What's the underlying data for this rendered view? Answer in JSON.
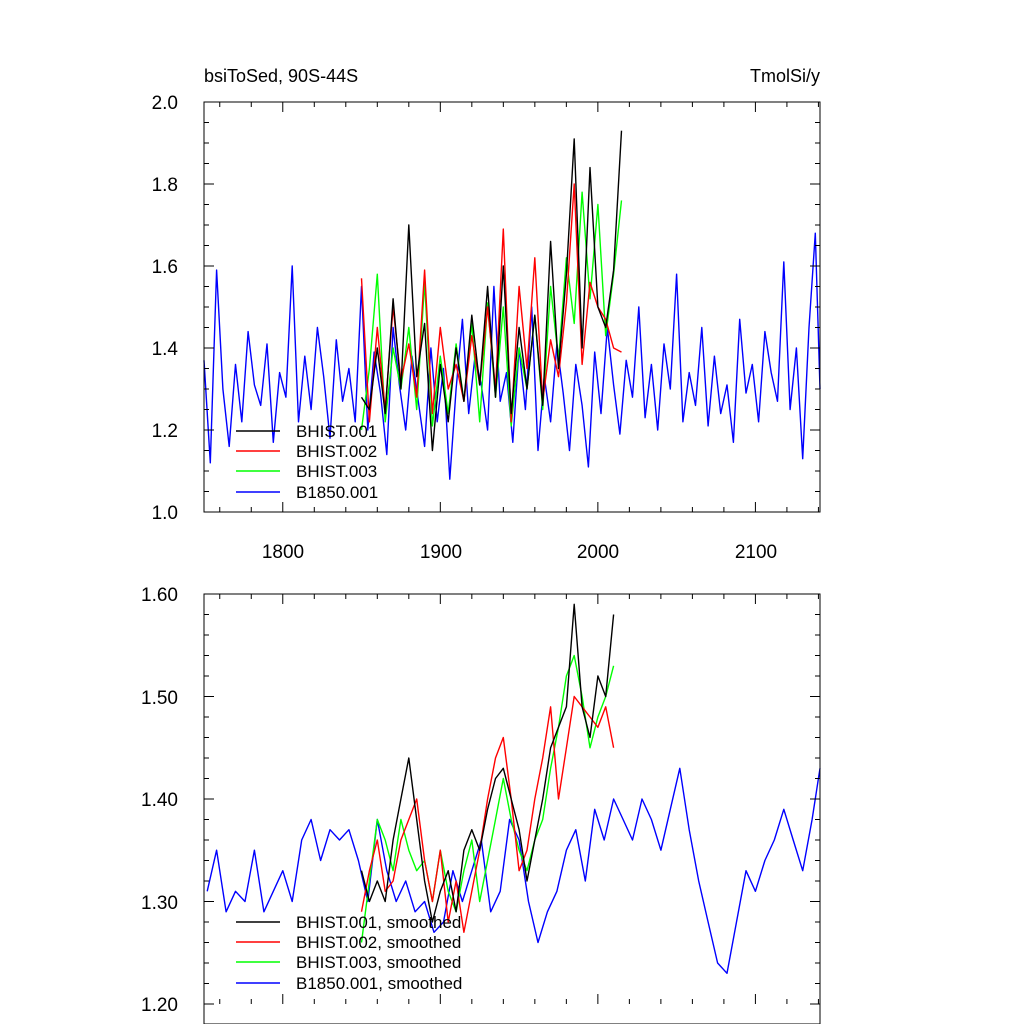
{
  "chart_data": [
    {
      "type": "line",
      "title_left": "bsiToSed, 90S-44S",
      "title_right": "TmolSi/y",
      "xlim": [
        1750,
        2141
      ],
      "ylim": [
        1.0,
        2.0
      ],
      "x_ticks": [
        1800,
        1900,
        2000,
        2100
      ],
      "x_tick_labels": [
        "1800",
        "1900",
        "2000",
        "2100"
      ],
      "y_ticks": [
        1.0,
        1.2,
        1.4,
        1.6,
        1.8,
        2.0
      ],
      "y_tick_labels": [
        "1.0",
        "1.2",
        "1.4",
        "1.6",
        "1.8",
        "2.0"
      ],
      "legend": [
        "BHIST.001",
        "BHIST.002",
        "BHIST.003",
        "B1850.001"
      ],
      "series": [
        {
          "name": "BHIST.001",
          "color": "#000000",
          "x": [
            1850,
            1855,
            1860,
            1865,
            1870,
            1875,
            1880,
            1885,
            1890,
            1895,
            1900,
            1905,
            1910,
            1915,
            1920,
            1925,
            1930,
            1935,
            1940,
            1945,
            1950,
            1955,
            1960,
            1965,
            1970,
            1975,
            1980,
            1985,
            1990,
            1995,
            2000,
            2005,
            2010,
            2015
          ],
          "values": [
            1.28,
            1.25,
            1.4,
            1.24,
            1.52,
            1.3,
            1.7,
            1.33,
            1.46,
            1.15,
            1.36,
            1.22,
            1.4,
            1.27,
            1.48,
            1.31,
            1.55,
            1.28,
            1.6,
            1.24,
            1.45,
            1.3,
            1.48,
            1.26,
            1.66,
            1.35,
            1.58,
            1.91,
            1.4,
            1.84,
            1.5,
            1.45,
            1.59,
            1.93
          ]
        },
        {
          "name": "BHIST.002",
          "color": "#ff0000",
          "x": [
            1850,
            1855,
            1860,
            1865,
            1870,
            1875,
            1880,
            1885,
            1890,
            1895,
            1900,
            1905,
            1910,
            1915,
            1920,
            1925,
            1930,
            1935,
            1940,
            1945,
            1950,
            1955,
            1960,
            1965,
            1970,
            1975,
            1980,
            1985,
            1990,
            1995,
            2000,
            2005,
            2010,
            2015
          ],
          "values": [
            1.57,
            1.22,
            1.45,
            1.25,
            1.5,
            1.32,
            1.41,
            1.28,
            1.59,
            1.24,
            1.45,
            1.3,
            1.36,
            1.27,
            1.43,
            1.31,
            1.5,
            1.3,
            1.69,
            1.22,
            1.55,
            1.35,
            1.62,
            1.27,
            1.42,
            1.33,
            1.51,
            1.8,
            1.36,
            1.56,
            1.5,
            1.47,
            1.4,
            1.39
          ]
        },
        {
          "name": "BHIST.003",
          "color": "#00ff00",
          "x": [
            1850,
            1855,
            1860,
            1865,
            1870,
            1875,
            1880,
            1885,
            1890,
            1895,
            1900,
            1905,
            1910,
            1915,
            1920,
            1925,
            1930,
            1935,
            1940,
            1945,
            1950,
            1955,
            1960,
            1965,
            1970,
            1975,
            1980,
            1985,
            1990,
            1995,
            2000,
            2005,
            2010,
            2015
          ],
          "values": [
            1.2,
            1.35,
            1.58,
            1.22,
            1.4,
            1.3,
            1.45,
            1.25,
            1.56,
            1.21,
            1.38,
            1.24,
            1.41,
            1.27,
            1.46,
            1.22,
            1.51,
            1.28,
            1.5,
            1.21,
            1.4,
            1.3,
            1.48,
            1.25,
            1.55,
            1.37,
            1.62,
            1.46,
            1.78,
            1.52,
            1.75,
            1.43,
            1.58,
            1.76
          ]
        },
        {
          "name": "B1850.001",
          "color": "#0000ff",
          "x": [
            1750,
            1754,
            1758,
            1762,
            1766,
            1770,
            1774,
            1778,
            1782,
            1786,
            1790,
            1794,
            1798,
            1802,
            1806,
            1810,
            1814,
            1818,
            1822,
            1826,
            1830,
            1834,
            1838,
            1842,
            1846,
            1850,
            1854,
            1858,
            1862,
            1866,
            1870,
            1874,
            1878,
            1882,
            1886,
            1890,
            1894,
            1898,
            1902,
            1906,
            1910,
            1914,
            1918,
            1922,
            1926,
            1930,
            1934,
            1938,
            1942,
            1946,
            1950,
            1954,
            1958,
            1962,
            1966,
            1970,
            1974,
            1978,
            1982,
            1986,
            1990,
            1994,
            1998,
            2002,
            2006,
            2010,
            2014,
            2018,
            2022,
            2026,
            2030,
            2034,
            2038,
            2042,
            2046,
            2050,
            2054,
            2058,
            2062,
            2066,
            2070,
            2074,
            2078,
            2082,
            2086,
            2090,
            2094,
            2098,
            2102,
            2106,
            2110,
            2114,
            2118,
            2122,
            2126,
            2130,
            2134,
            2138,
            2141
          ],
          "values": [
            1.37,
            1.12,
            1.59,
            1.3,
            1.16,
            1.36,
            1.22,
            1.44,
            1.31,
            1.26,
            1.41,
            1.17,
            1.34,
            1.28,
            1.6,
            1.22,
            1.38,
            1.25,
            1.45,
            1.33,
            1.18,
            1.42,
            1.27,
            1.35,
            1.22,
            1.55,
            1.2,
            1.39,
            1.29,
            1.14,
            1.45,
            1.31,
            1.2,
            1.38,
            1.27,
            1.16,
            1.4,
            1.22,
            1.35,
            1.08,
            1.3,
            1.47,
            1.24,
            1.38,
            1.31,
            1.2,
            1.55,
            1.27,
            1.34,
            1.17,
            1.4,
            1.25,
            1.5,
            1.15,
            1.33,
            1.22,
            1.41,
            1.29,
            1.15,
            1.36,
            1.26,
            1.11,
            1.39,
            1.24,
            1.45,
            1.31,
            1.19,
            1.37,
            1.28,
            1.5,
            1.23,
            1.36,
            1.2,
            1.41,
            1.3,
            1.58,
            1.22,
            1.34,
            1.26,
            1.45,
            1.21,
            1.38,
            1.24,
            1.31,
            1.17,
            1.47,
            1.29,
            1.36,
            1.22,
            1.44,
            1.34,
            1.27,
            1.61,
            1.25,
            1.4,
            1.13,
            1.45,
            1.68,
            1.3
          ]
        }
      ]
    },
    {
      "type": "line",
      "xlim": [
        1750,
        2141
      ],
      "ylim": [
        1.2,
        1.6
      ],
      "x_ticks": [
        1800,
        1900,
        2000,
        2100
      ],
      "y_ticks": [
        1.2,
        1.3,
        1.4,
        1.5,
        1.6
      ],
      "y_tick_labels": [
        "1.20",
        "1.30",
        "1.40",
        "1.50",
        "1.60"
      ],
      "legend": [
        "BHIST.001, smoothed",
        "BHIST.002, smoothed",
        "BHIST.003, smoothed",
        "B1850.001, smoothed"
      ],
      "series": [
        {
          "name": "BHIST.001, smoothed",
          "color": "#000000",
          "x": [
            1850,
            1855,
            1860,
            1865,
            1870,
            1875,
            1880,
            1885,
            1890,
            1895,
            1900,
            1905,
            1910,
            1915,
            1920,
            1925,
            1930,
            1935,
            1940,
            1945,
            1950,
            1955,
            1960,
            1965,
            1970,
            1975,
            1980,
            1985,
            1990,
            1995,
            2000,
            2005,
            2010
          ],
          "values": [
            1.33,
            1.3,
            1.32,
            1.3,
            1.36,
            1.4,
            1.44,
            1.38,
            1.32,
            1.28,
            1.31,
            1.33,
            1.29,
            1.35,
            1.37,
            1.35,
            1.39,
            1.42,
            1.43,
            1.4,
            1.37,
            1.32,
            1.36,
            1.4,
            1.45,
            1.47,
            1.49,
            1.59,
            1.49,
            1.46,
            1.52,
            1.5,
            1.58
          ]
        },
        {
          "name": "BHIST.002, smoothed",
          "color": "#ff0000",
          "x": [
            1850,
            1855,
            1860,
            1865,
            1870,
            1875,
            1880,
            1885,
            1890,
            1895,
            1900,
            1905,
            1910,
            1915,
            1920,
            1925,
            1930,
            1935,
            1940,
            1945,
            1950,
            1955,
            1960,
            1965,
            1970,
            1975,
            1980,
            1985,
            1990,
            1995,
            2000,
            2005,
            2010
          ],
          "values": [
            1.29,
            1.33,
            1.36,
            1.31,
            1.32,
            1.36,
            1.38,
            1.4,
            1.34,
            1.3,
            1.35,
            1.28,
            1.32,
            1.27,
            1.31,
            1.35,
            1.4,
            1.44,
            1.46,
            1.4,
            1.33,
            1.35,
            1.4,
            1.44,
            1.49,
            1.4,
            1.45,
            1.5,
            1.49,
            1.48,
            1.47,
            1.49,
            1.45
          ]
        },
        {
          "name": "BHIST.003, smoothed",
          "color": "#00ff00",
          "x": [
            1850,
            1855,
            1860,
            1865,
            1870,
            1875,
            1880,
            1885,
            1890,
            1895,
            1900,
            1905,
            1910,
            1915,
            1920,
            1925,
            1930,
            1935,
            1940,
            1945,
            1950,
            1955,
            1960,
            1965,
            1970,
            1975,
            1980,
            1985,
            1990,
            1995,
            2000,
            2005,
            2010
          ],
          "values": [
            1.26,
            1.32,
            1.38,
            1.36,
            1.33,
            1.38,
            1.35,
            1.33,
            1.34,
            1.3,
            1.35,
            1.31,
            1.29,
            1.33,
            1.36,
            1.3,
            1.34,
            1.38,
            1.42,
            1.38,
            1.35,
            1.33,
            1.36,
            1.38,
            1.43,
            1.47,
            1.52,
            1.54,
            1.5,
            1.45,
            1.48,
            1.5,
            1.53
          ]
        },
        {
          "name": "B1850.001, smoothed",
          "color": "#0000ff",
          "x": [
            1752,
            1758,
            1764,
            1770,
            1776,
            1782,
            1788,
            1794,
            1800,
            1806,
            1812,
            1818,
            1824,
            1830,
            1836,
            1842,
            1848,
            1854,
            1860,
            1866,
            1872,
            1878,
            1884,
            1890,
            1896,
            1902,
            1908,
            1914,
            1920,
            1926,
            1932,
            1938,
            1944,
            1950,
            1956,
            1962,
            1968,
            1974,
            1980,
            1986,
            1992,
            1998,
            2004,
            2010,
            2016,
            2022,
            2028,
            2034,
            2040,
            2046,
            2052,
            2058,
            2064,
            2070,
            2076,
            2082,
            2088,
            2094,
            2100,
            2106,
            2112,
            2118,
            2124,
            2130,
            2136,
            2141
          ],
          "values": [
            1.31,
            1.35,
            1.29,
            1.31,
            1.3,
            1.35,
            1.29,
            1.31,
            1.33,
            1.3,
            1.36,
            1.38,
            1.34,
            1.37,
            1.36,
            1.37,
            1.34,
            1.3,
            1.38,
            1.33,
            1.3,
            1.32,
            1.29,
            1.3,
            1.27,
            1.28,
            1.33,
            1.3,
            1.33,
            1.36,
            1.29,
            1.31,
            1.38,
            1.36,
            1.3,
            1.26,
            1.29,
            1.31,
            1.35,
            1.37,
            1.32,
            1.39,
            1.36,
            1.4,
            1.38,
            1.36,
            1.4,
            1.38,
            1.35,
            1.39,
            1.43,
            1.37,
            1.32,
            1.28,
            1.24,
            1.23,
            1.28,
            1.33,
            1.31,
            1.34,
            1.36,
            1.39,
            1.36,
            1.33,
            1.38,
            1.43
          ]
        }
      ]
    }
  ]
}
